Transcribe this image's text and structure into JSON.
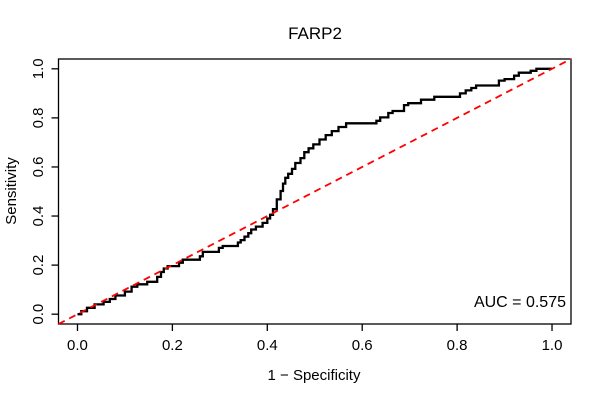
{
  "figure": {
    "background": "#ffffff"
  },
  "chart_data": {
    "type": "line",
    "subtype": "roc-step-curve",
    "title": "FARP2",
    "xlabel": "1 − Specificity",
    "ylabel": "Sensitivity",
    "xlim": [
      0,
      1
    ],
    "ylim": [
      0,
      1
    ],
    "grid": false,
    "legend": "none",
    "x_ticks": [
      0.0,
      0.2,
      0.4,
      0.6,
      0.8,
      1.0
    ],
    "x_tick_labels": [
      "0.0",
      "0.2",
      "0.4",
      "0.6",
      "0.8",
      "1.0"
    ],
    "y_ticks": [
      0.0,
      0.2,
      0.4,
      0.6,
      0.8,
      1.0
    ],
    "y_tick_labels": [
      "0.0",
      "0.2",
      "0.4",
      "0.6",
      "0.8",
      "1.0"
    ],
    "auc": 0.575,
    "annotations": [
      {
        "text": "AUC = 0.575",
        "anchor": "bottom-right"
      }
    ],
    "series": [
      {
        "name": "ROC curve",
        "color": "#000000",
        "style": "solid",
        "line_width": 2.3,
        "points": [
          [
            0.0,
            0.0
          ],
          [
            0.008,
            0.0
          ],
          [
            0.008,
            0.012
          ],
          [
            0.02,
            0.012
          ],
          [
            0.02,
            0.026
          ],
          [
            0.036,
            0.026
          ],
          [
            0.036,
            0.04
          ],
          [
            0.055,
            0.04
          ],
          [
            0.055,
            0.05
          ],
          [
            0.068,
            0.05
          ],
          [
            0.068,
            0.062
          ],
          [
            0.08,
            0.062
          ],
          [
            0.08,
            0.076
          ],
          [
            0.1,
            0.076
          ],
          [
            0.1,
            0.092
          ],
          [
            0.114,
            0.092
          ],
          [
            0.114,
            0.112
          ],
          [
            0.126,
            0.112
          ],
          [
            0.126,
            0.122
          ],
          [
            0.147,
            0.122
          ],
          [
            0.147,
            0.132
          ],
          [
            0.168,
            0.132
          ],
          [
            0.168,
            0.152
          ],
          [
            0.176,
            0.152
          ],
          [
            0.176,
            0.172
          ],
          [
            0.182,
            0.172
          ],
          [
            0.182,
            0.186
          ],
          [
            0.19,
            0.186
          ],
          [
            0.19,
            0.196
          ],
          [
            0.214,
            0.196
          ],
          [
            0.214,
            0.21
          ],
          [
            0.222,
            0.21
          ],
          [
            0.222,
            0.222
          ],
          [
            0.258,
            0.222
          ],
          [
            0.258,
            0.236
          ],
          [
            0.264,
            0.236
          ],
          [
            0.264,
            0.254
          ],
          [
            0.298,
            0.254
          ],
          [
            0.298,
            0.27
          ],
          [
            0.306,
            0.27
          ],
          [
            0.306,
            0.278
          ],
          [
            0.338,
            0.278
          ],
          [
            0.338,
            0.292
          ],
          [
            0.344,
            0.292
          ],
          [
            0.344,
            0.302
          ],
          [
            0.352,
            0.302
          ],
          [
            0.352,
            0.316
          ],
          [
            0.36,
            0.316
          ],
          [
            0.36,
            0.33
          ],
          [
            0.366,
            0.33
          ],
          [
            0.366,
            0.345
          ],
          [
            0.376,
            0.345
          ],
          [
            0.376,
            0.357
          ],
          [
            0.39,
            0.357
          ],
          [
            0.39,
            0.372
          ],
          [
            0.4,
            0.372
          ],
          [
            0.4,
            0.39
          ],
          [
            0.406,
            0.39
          ],
          [
            0.406,
            0.405
          ],
          [
            0.412,
            0.405
          ],
          [
            0.412,
            0.428
          ],
          [
            0.42,
            0.428
          ],
          [
            0.42,
            0.468
          ],
          [
            0.428,
            0.468
          ],
          [
            0.428,
            0.502
          ],
          [
            0.433,
            0.502
          ],
          [
            0.433,
            0.532
          ],
          [
            0.438,
            0.532
          ],
          [
            0.438,
            0.556
          ],
          [
            0.444,
            0.556
          ],
          [
            0.444,
            0.572
          ],
          [
            0.452,
            0.572
          ],
          [
            0.452,
            0.592
          ],
          [
            0.459,
            0.592
          ],
          [
            0.459,
            0.616
          ],
          [
            0.47,
            0.616
          ],
          [
            0.47,
            0.636
          ],
          [
            0.478,
            0.636
          ],
          [
            0.478,
            0.66
          ],
          [
            0.487,
            0.66
          ],
          [
            0.487,
            0.676
          ],
          [
            0.497,
            0.676
          ],
          [
            0.497,
            0.692
          ],
          [
            0.51,
            0.692
          ],
          [
            0.51,
            0.712
          ],
          [
            0.523,
            0.712
          ],
          [
            0.523,
            0.73
          ],
          [
            0.536,
            0.73
          ],
          [
            0.536,
            0.746
          ],
          [
            0.55,
            0.746
          ],
          [
            0.55,
            0.763
          ],
          [
            0.566,
            0.763
          ],
          [
            0.566,
            0.778
          ],
          [
            0.63,
            0.778
          ],
          [
            0.63,
            0.788
          ],
          [
            0.638,
            0.788
          ],
          [
            0.638,
            0.802
          ],
          [
            0.655,
            0.802
          ],
          [
            0.655,
            0.82
          ],
          [
            0.664,
            0.82
          ],
          [
            0.664,
            0.828
          ],
          [
            0.688,
            0.828
          ],
          [
            0.688,
            0.852
          ],
          [
            0.697,
            0.852
          ],
          [
            0.697,
            0.86
          ],
          [
            0.724,
            0.86
          ],
          [
            0.724,
            0.874
          ],
          [
            0.752,
            0.874
          ],
          [
            0.752,
            0.886
          ],
          [
            0.806,
            0.886
          ],
          [
            0.806,
            0.9
          ],
          [
            0.818,
            0.9
          ],
          [
            0.818,
            0.912
          ],
          [
            0.83,
            0.912
          ],
          [
            0.83,
            0.922
          ],
          [
            0.84,
            0.922
          ],
          [
            0.84,
            0.932
          ],
          [
            0.888,
            0.932
          ],
          [
            0.888,
            0.952
          ],
          [
            0.9,
            0.952
          ],
          [
            0.9,
            0.958
          ],
          [
            0.92,
            0.958
          ],
          [
            0.92,
            0.972
          ],
          [
            0.93,
            0.972
          ],
          [
            0.93,
            0.984
          ],
          [
            0.955,
            0.984
          ],
          [
            0.955,
            0.992
          ],
          [
            0.967,
            0.992
          ],
          [
            0.967,
            1.0
          ],
          [
            1.0,
            1.0
          ]
        ]
      },
      {
        "name": "chance reference line",
        "role": "reference",
        "color": "#ff0000",
        "style": "dashed",
        "line_width": 1.8,
        "points": [
          [
            0,
            0
          ],
          [
            1,
            1
          ]
        ]
      }
    ]
  }
}
